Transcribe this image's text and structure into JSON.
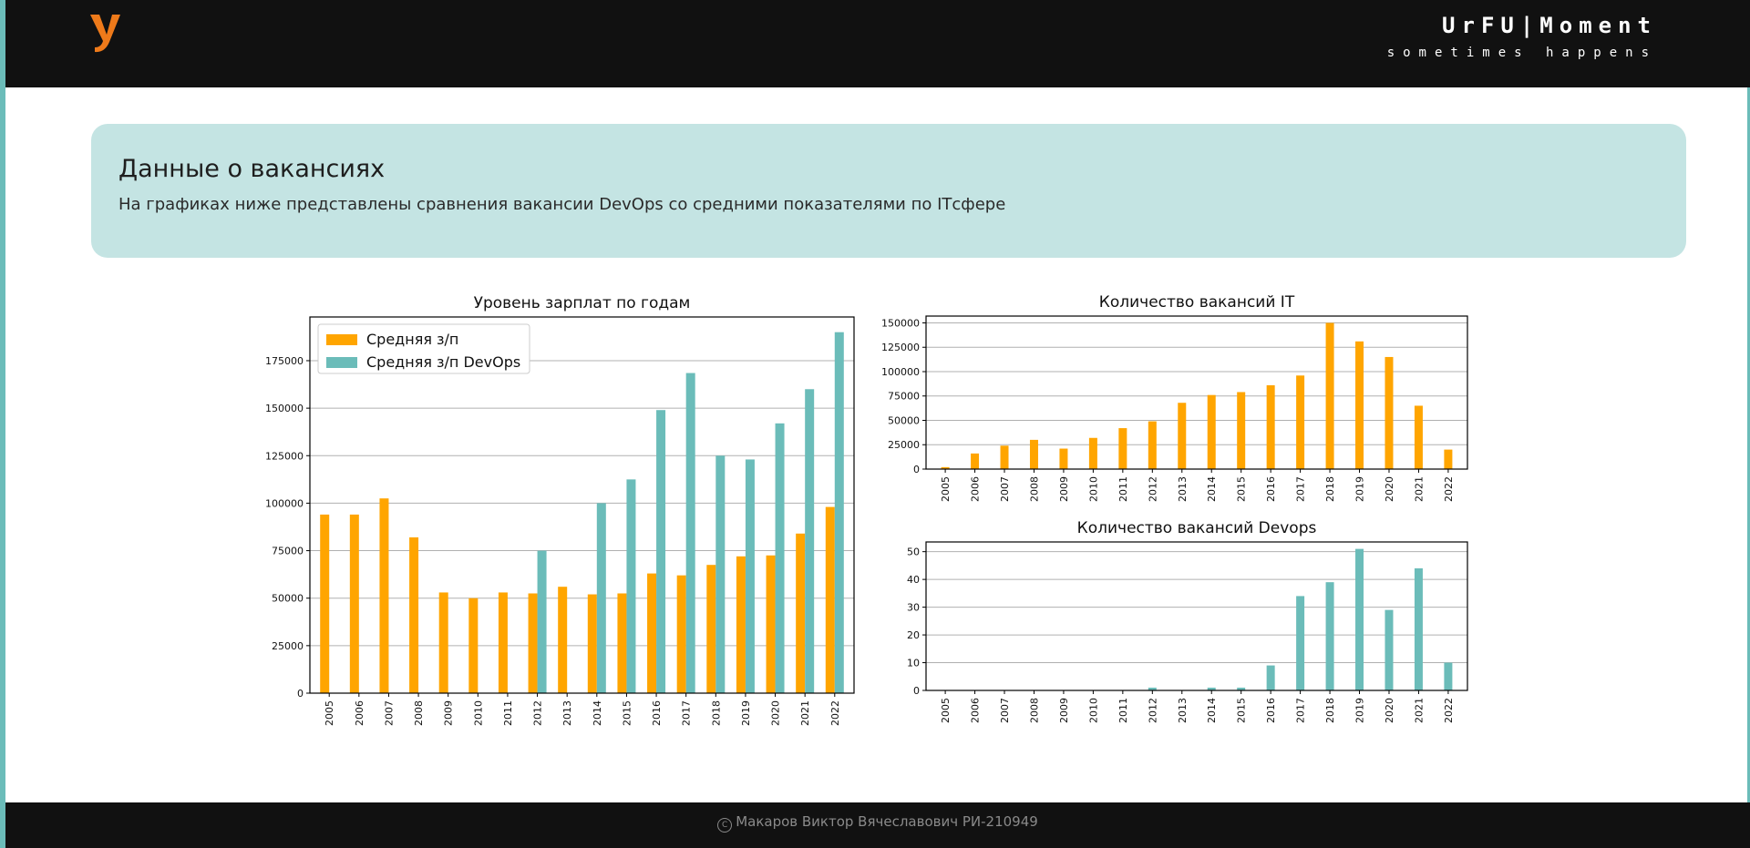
{
  "header": {
    "logo_icon": "urfu-y-logo-icon",
    "brand_title": "UrFU|Moment",
    "brand_subtitle": "sometimes happens"
  },
  "info": {
    "title": "Данные о вакансиях",
    "description": "На графиках ниже представлены сравнения вакансии DevOps со средними показателями по ITсфере"
  },
  "colors": {
    "orange": "#ffa500",
    "teal": "#6bbcb9"
  },
  "chart_data": [
    {
      "type": "bar",
      "title": "Уровень зарплат по годам",
      "categories": [
        "2005",
        "2006",
        "2007",
        "2008",
        "2009",
        "2010",
        "2011",
        "2012",
        "2013",
        "2014",
        "2015",
        "2016",
        "2017",
        "2018",
        "2019",
        "2020",
        "2021",
        "2022"
      ],
      "series": [
        {
          "name": "Средняя з/п",
          "color": "#ffa500",
          "values": [
            94000,
            94000,
            102500,
            82000,
            53000,
            50000,
            53000,
            52500,
            56000,
            52000,
            52500,
            63000,
            62000,
            67500,
            72000,
            72500,
            84000,
            98000
          ]
        },
        {
          "name": "Средняя з/п DevOps",
          "color": "#6bbcb9",
          "values": [
            0,
            0,
            0,
            0,
            0,
            0,
            0,
            75000,
            0,
            100000,
            112500,
            149000,
            168500,
            125000,
            123000,
            142000,
            160000,
            190000
          ]
        }
      ],
      "ylim": [
        0,
        198000
      ],
      "yticks": [
        0,
        25000,
        50000,
        75000,
        100000,
        125000,
        150000,
        175000
      ],
      "legend": "top-left",
      "grid": "y"
    },
    {
      "type": "bar",
      "title": "Количество вакансий IT",
      "categories": [
        "2005",
        "2006",
        "2007",
        "2008",
        "2009",
        "2010",
        "2011",
        "2012",
        "2013",
        "2014",
        "2015",
        "2016",
        "2017",
        "2018",
        "2019",
        "2020",
        "2021",
        "2022"
      ],
      "series": [
        {
          "color": "#ffa500",
          "values": [
            2000,
            16000,
            24000,
            30000,
            21000,
            32000,
            42000,
            49000,
            68000,
            76000,
            79000,
            86000,
            96000,
            150000,
            131000,
            115000,
            65000,
            20000
          ]
        }
      ],
      "ylim": [
        0,
        157000
      ],
      "yticks": [
        0,
        25000,
        50000,
        75000,
        100000,
        125000,
        150000
      ],
      "grid": "y"
    },
    {
      "type": "bar",
      "title": "Количество вакансий Devops",
      "categories": [
        "2005",
        "2006",
        "2007",
        "2008",
        "2009",
        "2010",
        "2011",
        "2012",
        "2013",
        "2014",
        "2015",
        "2016",
        "2017",
        "2018",
        "2019",
        "2020",
        "2021",
        "2022"
      ],
      "series": [
        {
          "color": "#6bbcb9",
          "values": [
            0,
            0,
            0,
            0,
            0,
            0,
            0,
            1,
            0,
            1,
            1,
            9,
            34,
            39,
            51,
            29,
            44,
            10
          ]
        }
      ],
      "ylim": [
        0,
        53.5
      ],
      "yticks": [
        0,
        10,
        20,
        30,
        40,
        50
      ],
      "grid": "y"
    }
  ],
  "footer": {
    "copyright_icon": "copyright-icon",
    "text": "Макаров Виктор Вячеславович РИ-210949"
  }
}
